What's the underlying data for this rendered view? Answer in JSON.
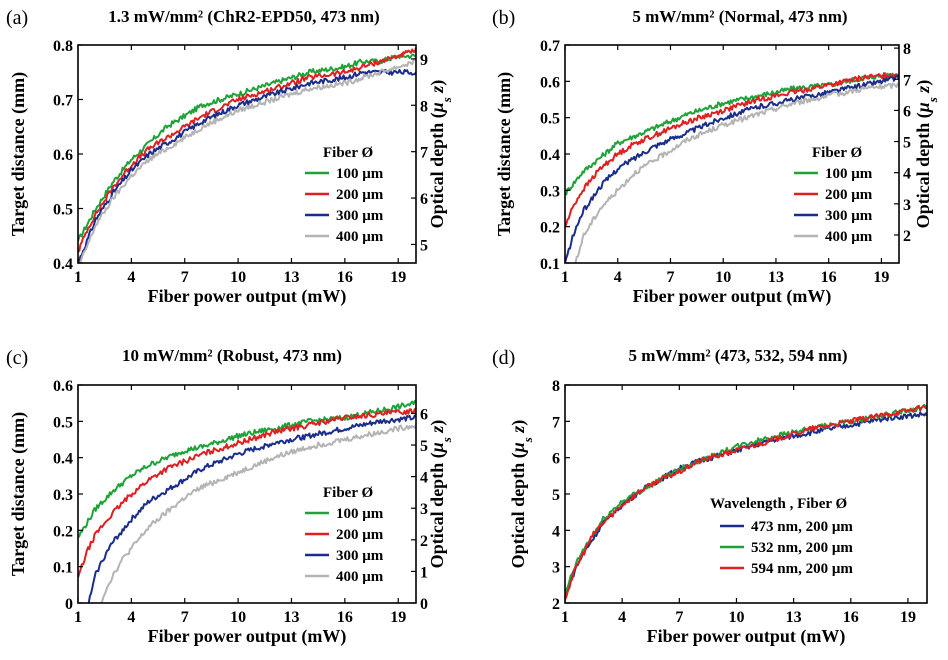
{
  "chart_data": [
    {
      "type": "line",
      "panel_label": "(a)",
      "title": "1.3 mW/mm² (ChR2-EPD50, 473 nm)",
      "xlabel": "Fiber power output (mW)",
      "ylabel": "Target distance (mm)",
      "y2label": [
        "Optical depth (",
        "μ",
        "s",
        " z)"
      ],
      "xlim": [
        1,
        20
      ],
      "ylim": [
        0.4,
        0.8
      ],
      "y2lim": [
        4.6,
        9.3
      ],
      "xticks": [
        "1",
        "4",
        "7",
        "10",
        "13",
        "16",
        "19"
      ],
      "yticks": [
        "0.4",
        "0.5",
        "0.6",
        "0.7",
        "0.8"
      ],
      "y2ticks": [
        "5",
        "6",
        "7",
        "8",
        "9"
      ],
      "legend_title": "Fiber Ø",
      "legend_position": "lower-right",
      "series": [
        {
          "name": "100 μm",
          "color": "#1fa339",
          "x": [
            1,
            1.5,
            2,
            3,
            4,
            5,
            6,
            7,
            8,
            10,
            12,
            13,
            14,
            16,
            17,
            18,
            19,
            20
          ],
          "y": [
            0.44,
            0.47,
            0.5,
            0.55,
            0.59,
            0.62,
            0.65,
            0.67,
            0.69,
            0.71,
            0.73,
            0.74,
            0.75,
            0.76,
            0.77,
            0.77,
            0.78,
            0.78
          ]
        },
        {
          "name": "200 μm",
          "color": "#e02020",
          "x": [
            1,
            1.5,
            2,
            3,
            4,
            5,
            6,
            7,
            8,
            10,
            12,
            13,
            14,
            16,
            17,
            18,
            19,
            20
          ],
          "y": [
            0.42,
            0.46,
            0.49,
            0.54,
            0.58,
            0.61,
            0.63,
            0.65,
            0.67,
            0.7,
            0.72,
            0.73,
            0.74,
            0.75,
            0.76,
            0.77,
            0.78,
            0.79
          ]
        },
        {
          "name": "300 μm",
          "color": "#1a2d8c",
          "x": [
            1,
            1.5,
            2,
            3,
            4,
            5,
            6,
            7,
            8,
            10,
            12,
            13,
            14,
            16,
            17,
            18,
            19,
            20
          ],
          "y": [
            0.4,
            0.44,
            0.48,
            0.53,
            0.57,
            0.6,
            0.62,
            0.64,
            0.66,
            0.69,
            0.71,
            0.72,
            0.73,
            0.74,
            0.75,
            0.75,
            0.75,
            0.75
          ]
        },
        {
          "name": "400 μm",
          "color": "#b4b4b4",
          "x": [
            1,
            1.5,
            2,
            3,
            4,
            5,
            6,
            7,
            8,
            10,
            12,
            13,
            14,
            16,
            17,
            18,
            19,
            20
          ],
          "y": [
            0.39,
            0.43,
            0.47,
            0.52,
            0.56,
            0.59,
            0.61,
            0.63,
            0.65,
            0.68,
            0.7,
            0.71,
            0.72,
            0.73,
            0.74,
            0.75,
            0.76,
            0.77
          ]
        }
      ]
    },
    {
      "type": "line",
      "panel_label": "(b)",
      "title": "5 mW/mm²  (Normal, 473 nm)",
      "xlabel": "Fiber power output (mW)",
      "ylabel": "Target distance (mm)",
      "y2label": [
        "Optical depth (",
        "μ",
        "s",
        " z)"
      ],
      "xlim": [
        1,
        20
      ],
      "ylim": [
        0.1,
        0.7
      ],
      "y2lim": [
        1.1,
        8.1
      ],
      "xticks": [
        "1",
        "4",
        "7",
        "10",
        "13",
        "16",
        "19"
      ],
      "yticks": [
        "0.1",
        "0.2",
        "0.3",
        "0.4",
        "0.5",
        "0.6",
        "0.7"
      ],
      "y2ticks": [
        "2",
        "3",
        "4",
        "5",
        "6",
        "7",
        "8"
      ],
      "legend_title": "Fiber Ø",
      "legend_position": "lower-right",
      "series": [
        {
          "name": "100 μm",
          "color": "#1fa339",
          "x": [
            1,
            1.5,
            2,
            3,
            4,
            5,
            6,
            7,
            8,
            10,
            12,
            14,
            16,
            18,
            20
          ],
          "y": [
            0.29,
            0.32,
            0.35,
            0.39,
            0.43,
            0.45,
            0.47,
            0.49,
            0.51,
            0.54,
            0.56,
            0.58,
            0.59,
            0.61,
            0.62
          ]
        },
        {
          "name": "200 μm",
          "color": "#e02020",
          "x": [
            1,
            1.5,
            2,
            3,
            4,
            5,
            6,
            7,
            8,
            10,
            12,
            14,
            16,
            18,
            20
          ],
          "y": [
            0.2,
            0.26,
            0.3,
            0.36,
            0.4,
            0.43,
            0.45,
            0.47,
            0.49,
            0.52,
            0.55,
            0.57,
            0.59,
            0.61,
            0.62
          ]
        },
        {
          "name": "300 μm",
          "color": "#1a2d8c",
          "x": [
            1,
            1.5,
            2,
            3,
            4,
            5,
            6,
            7,
            8,
            10,
            12,
            14,
            16,
            18,
            20
          ],
          "y": [
            0.1,
            0.18,
            0.24,
            0.31,
            0.36,
            0.39,
            0.42,
            0.44,
            0.46,
            0.5,
            0.53,
            0.55,
            0.57,
            0.59,
            0.61
          ]
        },
        {
          "name": "400 μm",
          "color": "#b4b4b4",
          "x": [
            1.6,
            1.8,
            2,
            2.5,
            3,
            4,
            5,
            6,
            7,
            8,
            10,
            12,
            14,
            16,
            18,
            20
          ],
          "y": [
            0.1,
            0.13,
            0.17,
            0.21,
            0.25,
            0.3,
            0.35,
            0.38,
            0.41,
            0.44,
            0.48,
            0.51,
            0.54,
            0.56,
            0.58,
            0.59
          ]
        }
      ]
    },
    {
      "type": "line",
      "panel_label": "(c)",
      "title": "10 mW/mm²  (Robust, 473 nm)",
      "xlabel": "Fiber power output (mW)",
      "ylabel": "Target distance (mm)",
      "y2label": [
        "Optical depth (",
        "μ",
        "s",
        " z)"
      ],
      "xlim": [
        1,
        20
      ],
      "ylim": [
        0,
        0.6
      ],
      "y2lim": [
        0,
        6.9
      ],
      "xticks": [
        "1",
        "4",
        "7",
        "10",
        "13",
        "16",
        "19"
      ],
      "yticks": [
        "0",
        "0.1",
        "0.2",
        "0.3",
        "0.4",
        "0.5",
        "0.6"
      ],
      "y2ticks": [
        "0",
        "1",
        "2",
        "3",
        "4",
        "5",
        "6"
      ],
      "legend_title": "Fiber Ø",
      "legend_position": "lower-right",
      "series": [
        {
          "name": "100 μm",
          "color": "#1fa339",
          "x": [
            1,
            1.5,
            2,
            3,
            4,
            5,
            6,
            7,
            8,
            10,
            12,
            14,
            16,
            18,
            20
          ],
          "y": [
            0.18,
            0.22,
            0.26,
            0.31,
            0.35,
            0.38,
            0.4,
            0.42,
            0.43,
            0.46,
            0.48,
            0.5,
            0.51,
            0.53,
            0.55
          ]
        },
        {
          "name": "200 μm",
          "color": "#e02020",
          "x": [
            1,
            1.5,
            2,
            3,
            4,
            5,
            6,
            7,
            8,
            10,
            12,
            14,
            16,
            18,
            20
          ],
          "y": [
            0.07,
            0.14,
            0.19,
            0.25,
            0.3,
            0.34,
            0.37,
            0.39,
            0.41,
            0.44,
            0.47,
            0.49,
            0.51,
            0.52,
            0.53
          ]
        },
        {
          "name": "300 μm",
          "color": "#1a2d8c",
          "x": [
            1.6,
            1.8,
            2,
            2.5,
            3,
            4,
            5,
            6,
            7,
            8,
            10,
            12,
            14,
            16,
            18,
            20
          ],
          "y": [
            0,
            0.04,
            0.08,
            0.13,
            0.17,
            0.23,
            0.28,
            0.31,
            0.34,
            0.37,
            0.41,
            0.44,
            0.46,
            0.48,
            0.5,
            0.51
          ]
        },
        {
          "name": "400 μm",
          "color": "#b4b4b4",
          "x": [
            2.3,
            2.5,
            3,
            3.5,
            4,
            5,
            6,
            7,
            8,
            10,
            12,
            14,
            16,
            18,
            20
          ],
          "y": [
            0,
            0.03,
            0.08,
            0.12,
            0.15,
            0.21,
            0.25,
            0.29,
            0.32,
            0.36,
            0.4,
            0.43,
            0.45,
            0.47,
            0.49
          ]
        }
      ]
    },
    {
      "type": "line",
      "panel_label": "(d)",
      "title": "5 mW/mm²  (473, 532, 594 nm)",
      "xlabel": "Fiber power output (mW)",
      "ylabel": [
        "Optical depth (",
        "μ",
        "s",
        " z)"
      ],
      "xlim": [
        1,
        20
      ],
      "ylim": [
        2,
        8
      ],
      "xticks": [
        "1",
        "4",
        "7",
        "10",
        "13",
        "16",
        "19"
      ],
      "yticks": [
        "2",
        "3",
        "4",
        "5",
        "6",
        "7",
        "8"
      ],
      "legend_title": "Wavelength , Fiber Ø",
      "legend_position": "lower-right",
      "series": [
        {
          "name": "473 nm, 200 μm",
          "color": "#1a2d8c",
          "x": [
            1,
            1.3,
            1.6,
            2,
            2.5,
            3,
            4,
            5,
            6,
            7,
            8,
            10,
            12,
            14,
            16,
            18,
            20
          ],
          "y": [
            2.1,
            2.6,
            3.0,
            3.4,
            3.8,
            4.2,
            4.7,
            5.1,
            5.4,
            5.7,
            5.9,
            6.2,
            6.5,
            6.7,
            6.9,
            7.1,
            7.2
          ]
        },
        {
          "name": "532 nm, 200 μm",
          "color": "#1fa339",
          "x": [
            1,
            1.3,
            1.6,
            2,
            2.5,
            3,
            4,
            5,
            6,
            7,
            8,
            10,
            12,
            14,
            16,
            18,
            20
          ],
          "y": [
            2.2,
            2.7,
            3.1,
            3.5,
            3.9,
            4.3,
            4.8,
            5.1,
            5.4,
            5.7,
            5.9,
            6.3,
            6.6,
            6.8,
            7.0,
            7.2,
            7.4
          ]
        },
        {
          "name": "594 nm, 200 μm",
          "color": "#e02020",
          "x": [
            1,
            1.3,
            1.6,
            2,
            2.5,
            3,
            4,
            5,
            6,
            7,
            8,
            10,
            12,
            14,
            16,
            18,
            20
          ],
          "y": [
            2.1,
            2.6,
            3.0,
            3.4,
            3.9,
            4.2,
            4.7,
            5.1,
            5.4,
            5.6,
            5.9,
            6.2,
            6.5,
            6.8,
            7.0,
            7.2,
            7.4
          ]
        }
      ]
    }
  ]
}
